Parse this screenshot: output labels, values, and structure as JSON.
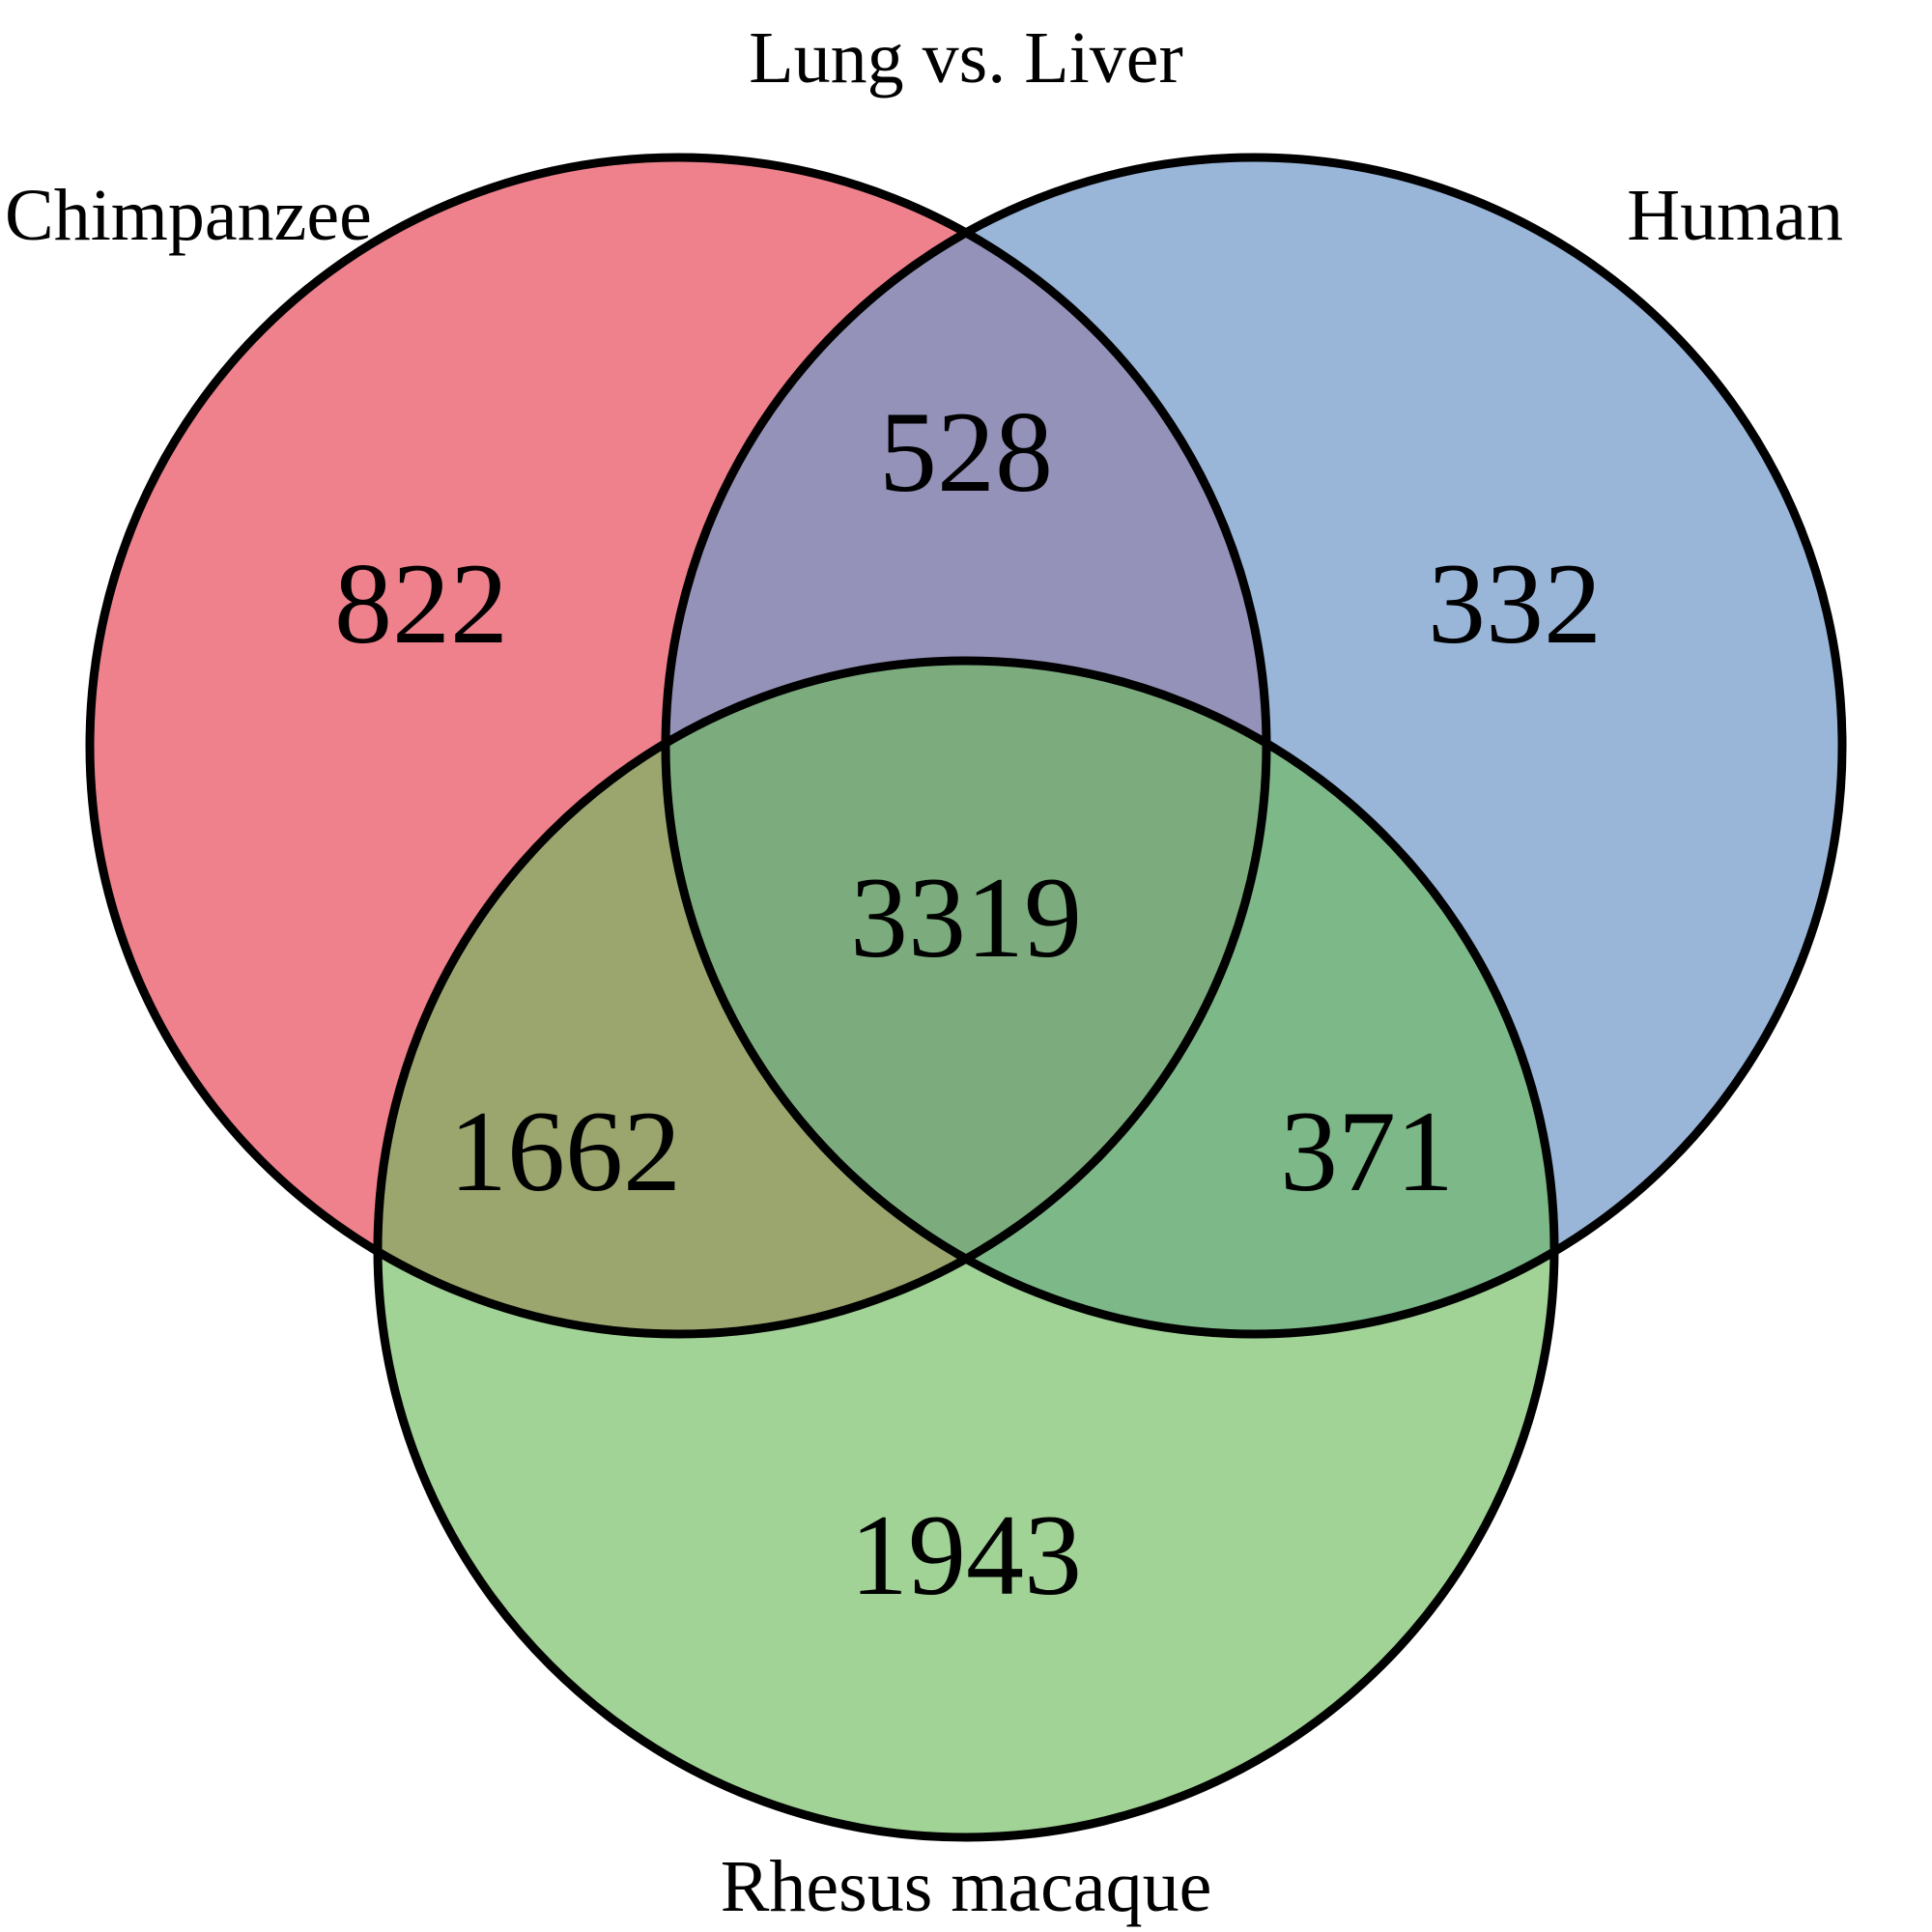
{
  "title": "Lung vs. Liver",
  "sets": {
    "chimpanzee": {
      "label": "Chimpanzee",
      "color": "#e8505f"
    },
    "human": {
      "label": "Human",
      "color": "#7199c9"
    },
    "rhesus": {
      "label": "Rhesus macaque",
      "color": "#6eba5e"
    }
  },
  "regions": {
    "chimpanzee_only": "822",
    "human_only": "332",
    "rhesus_only": "1943",
    "chimpanzee_human": "528",
    "chimpanzee_rhesus": "1662",
    "human_rhesus": "371",
    "all_three": "3319"
  },
  "outline_color": "#000000"
}
